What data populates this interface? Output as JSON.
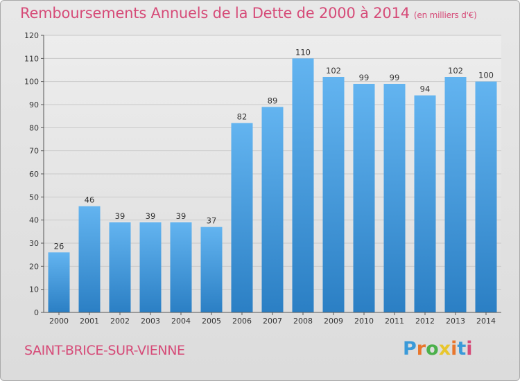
{
  "header": {
    "title": "Remboursements Annuels de la Dette de 2000 à 2014",
    "subtitle": "(en milliers d'€)"
  },
  "footer": {
    "town": "SAINT-BRICE-SUR-VIENNE",
    "logo": "Proxiti",
    "logo_colors": [
      "#3a9ad9",
      "#e8762c",
      "#4bb04b",
      "#e8c62c",
      "#e8762c",
      "#3a9ad9",
      "#d64b78"
    ]
  },
  "colors": {
    "bar_top": "#63b4f0",
    "bar_bottom": "#2b7fc4",
    "accent": "#d64b78",
    "grid": "#c8c8c8"
  },
  "chart_data": {
    "type": "bar",
    "title": "Remboursements Annuels de la Dette de 2000 à 2014",
    "subtitle": "(en milliers d'€)",
    "categories": [
      "2000",
      "2001",
      "2002",
      "2003",
      "2004",
      "2005",
      "2006",
      "2007",
      "2008",
      "2009",
      "2010",
      "2011",
      "2012",
      "2013",
      "2014"
    ],
    "values": [
      26,
      46,
      39,
      39,
      39,
      37,
      82,
      89,
      110,
      102,
      99,
      99,
      94,
      102,
      100
    ],
    "ylim": [
      0,
      120
    ],
    "yticks": [
      0,
      10,
      20,
      30,
      40,
      50,
      60,
      70,
      80,
      90,
      100,
      110,
      120
    ],
    "grid": true
  }
}
